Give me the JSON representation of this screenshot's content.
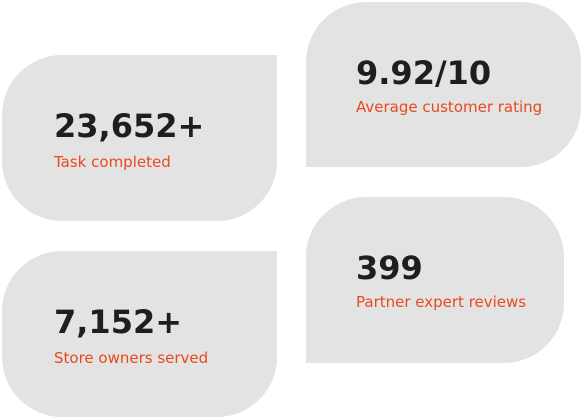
{
  "stats": [
    {
      "value": "23,652+",
      "label": "Task completed"
    },
    {
      "value": "9.92/10",
      "label": "Average customer rating"
    },
    {
      "value": "7,152+",
      "label": "Store owners served"
    },
    {
      "value": "399",
      "label": "Partner expert reviews"
    }
  ],
  "colors": {
    "card_background": "#e3e3e3",
    "value_text": "#1e1e1e",
    "label_accent": "#e8491d"
  }
}
